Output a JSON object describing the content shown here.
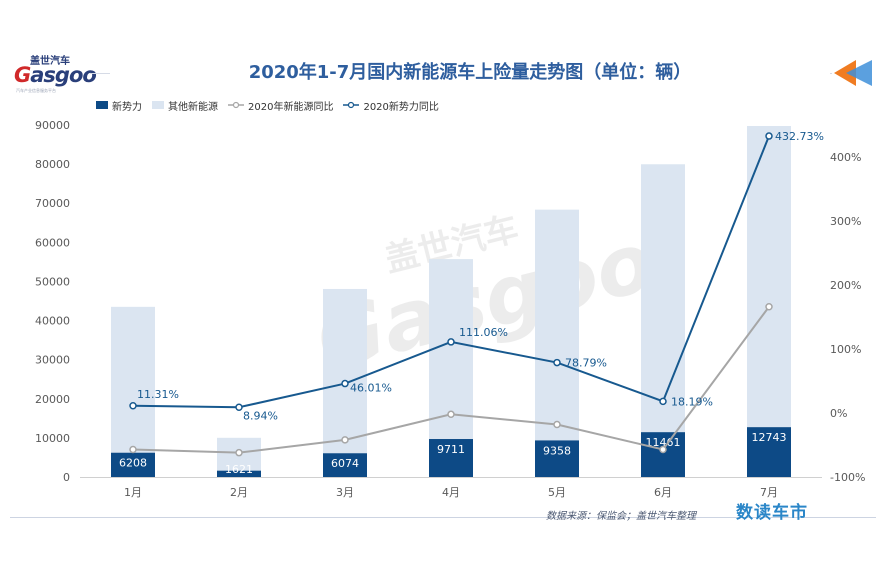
{
  "logo": {
    "cn": "盖世汽车",
    "en_g": "G",
    "en_rest": "asgoo",
    "sub": "汽车产业信息服务平台",
    "icon": "triangle-play-icon"
  },
  "title": "2020年1-7月国内新能源车上险量走势图（单位：辆）",
  "source": "数据来源：保监会；盖世汽车整理",
  "brand": "数读车市",
  "colors": {
    "new_forces_bar": "#0d4a86",
    "other_bar": "#dbe5f1",
    "nev_yoy_line": "#a6a6a6",
    "new_forces_yoy_line": "#17598f",
    "title": "#2e5e9e",
    "arrow_orange": "#f07c22",
    "arrow_blue": "#3e8fd9"
  },
  "chart_data": {
    "type": "bar",
    "categories": [
      "1月",
      "2月",
      "3月",
      "4月",
      "5月",
      "6月",
      "7月"
    ],
    "series": [
      {
        "name": "新势力",
        "kind": "bar-stacked",
        "axis": "left",
        "values": [
          6208,
          1621,
          6074,
          9711,
          9358,
          11461,
          12743
        ],
        "labels": [
          "6208",
          "1621",
          "6074",
          "9711",
          "9358",
          "11461",
          "12743"
        ]
      },
      {
        "name": "其他新能源",
        "kind": "bar-stacked",
        "axis": "left",
        "values": [
          37300,
          8400,
          42000,
          46000,
          59000,
          68500,
          77000
        ]
      },
      {
        "name": "2020年新能源同比",
        "kind": "line",
        "axis": "right",
        "values": [
          -57,
          -62,
          -42,
          -2,
          -18,
          -57,
          166
        ]
      },
      {
        "name": "2020新势力同比",
        "kind": "line",
        "axis": "right",
        "values": [
          11.31,
          8.94,
          46.01,
          111.06,
          78.79,
          18.19,
          432.73
        ],
        "labels": [
          "11.31%",
          "8.94%",
          "46.01%",
          "111.06%",
          "78.79%",
          "18.19%",
          "432.73%"
        ]
      }
    ],
    "y_left": {
      "min": 0,
      "max": 90000,
      "ticks": [
        "0",
        "10000",
        "20000",
        "30000",
        "40000",
        "50000",
        "60000",
        "70000",
        "80000",
        "90000"
      ]
    },
    "y_right": {
      "min": -100,
      "max": 450,
      "ticks": [
        "-100%",
        "0%",
        "100%",
        "200%",
        "300%",
        "400%"
      ],
      "tick_values": [
        -100,
        0,
        100,
        200,
        300,
        400
      ]
    },
    "grid": false,
    "legend_position": "top-left",
    "watermark": {
      "cn": "盖世汽车",
      "en": "Gasgoo"
    }
  }
}
